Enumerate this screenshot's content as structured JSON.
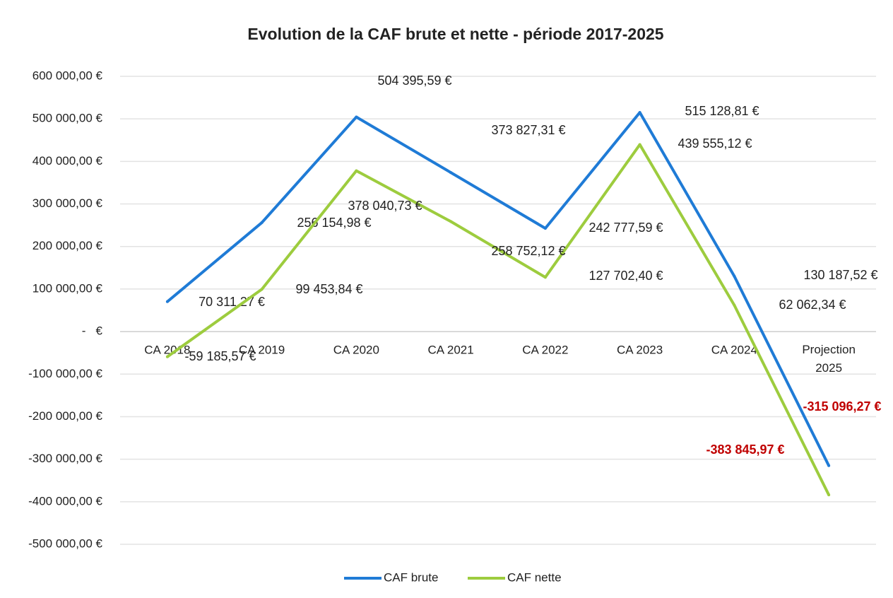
{
  "chart_data": {
    "type": "line",
    "title": "Evolution de la CAF brute et nette - période 2017-2025",
    "categories": [
      "CA 2018",
      "CA 2019",
      "CA 2020",
      "CA 2021",
      "CA 2022",
      "CA 2023",
      "CA 2024",
      "Projection 2025"
    ],
    "series": [
      {
        "name": "CAF brute",
        "color": "#1f7bd6",
        "values": [
          70311.27,
          256154.98,
          504395.59,
          373827.31,
          242777.59,
          515128.81,
          130187.52,
          -315096.27
        ],
        "value_labels": [
          "70 311,27 €",
          "256 154,98 €",
          "504 395,59 €",
          "373 827,31 €",
          "242 777,59 €",
          "515 128,81 €",
          "130 187,52 €",
          "-315 096,27 €"
        ]
      },
      {
        "name": "CAF nette",
        "color": "#9dcc3e",
        "values": [
          -59185.57,
          99453.84,
          378040.73,
          258752.12,
          127702.4,
          439555.12,
          62062.34,
          -383845.97
        ],
        "value_labels": [
          "-59 185,57 €",
          "99 453,84 €",
          "378 040,73 €",
          "258 752,12 €",
          "127 702,40 €",
          "439 555,12 €",
          "62 062,34 €",
          "-383 845,97 €"
        ]
      }
    ],
    "ylim": [
      -500000,
      600000
    ],
    "yticks": [
      {
        "value": -500000,
        "label": "-500 000,00 €"
      },
      {
        "value": -400000,
        "label": "-400 000,00 €"
      },
      {
        "value": -300000,
        "label": "-300 000,00 €"
      },
      {
        "value": -200000,
        "label": "-200 000,00 €"
      },
      {
        "value": -100000,
        "label": "-100 000,00 €"
      },
      {
        "value": 0,
        "label": "-   €"
      },
      {
        "value": 100000,
        "label": "100 000,00 €"
      },
      {
        "value": 200000,
        "label": "200 000,00 €"
      },
      {
        "value": 300000,
        "label": "300 000,00 €"
      },
      {
        "value": 400000,
        "label": "400 000,00 €"
      },
      {
        "value": 500000,
        "label": "500 000,00 €"
      },
      {
        "value": 600000,
        "label": "600 000,00 €"
      }
    ],
    "grid": true,
    "legend": "bottom"
  }
}
